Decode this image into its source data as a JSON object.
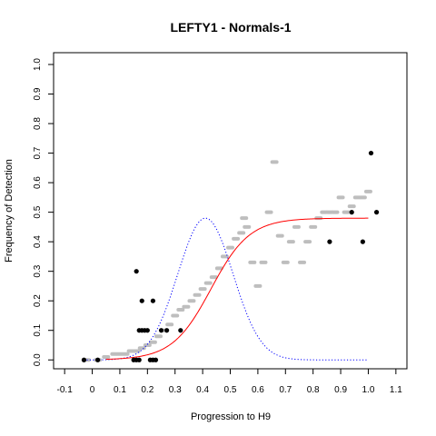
{
  "chart_data": {
    "type": "scatter",
    "title": "LEFTY1 - Normals-1",
    "xlabel": "Progression to H9",
    "ylabel": "Frequency of Detection",
    "xlim": [
      -0.14,
      1.14
    ],
    "ylim": [
      -0.03,
      1.04
    ],
    "x_ticks": [
      "-0.1",
      "0",
      "0.1",
      "0.2",
      "0.3",
      "0.4",
      "0.5",
      "0.6",
      "0.7",
      "0.8",
      "0.9",
      "1.0",
      "1.1"
    ],
    "x_tick_values": [
      -0.1,
      0,
      0.1,
      0.2,
      0.3,
      0.4,
      0.5,
      0.6,
      0.7,
      0.8,
      0.9,
      1.0,
      1.1
    ],
    "y_ticks": [
      "0.0",
      "0.1",
      "0.2",
      "0.3",
      "0.4",
      "0.5",
      "0.6",
      "0.7",
      "0.8",
      "0.9",
      "1.0"
    ],
    "y_tick_values": [
      0,
      0.1,
      0.2,
      0.3,
      0.4,
      0.5,
      0.6,
      0.7,
      0.8,
      0.9,
      1.0
    ],
    "grid": false,
    "legend": "none",
    "colors": {
      "observed_points": "#000000",
      "smoothed_points": "#bebebe",
      "fitted_curve": "#ff0000",
      "density_curve": "#0000ff"
    },
    "observed_points": [
      {
        "x": -0.03,
        "y": 0.0
      },
      {
        "x": 0.02,
        "y": 0.0
      },
      {
        "x": 0.15,
        "y": 0.0
      },
      {
        "x": 0.16,
        "y": 0.0
      },
      {
        "x": 0.17,
        "y": 0.0
      },
      {
        "x": 0.21,
        "y": 0.0
      },
      {
        "x": 0.22,
        "y": 0.0
      },
      {
        "x": 0.23,
        "y": 0.0
      },
      {
        "x": 0.16,
        "y": 0.3
      },
      {
        "x": 0.18,
        "y": 0.2
      },
      {
        "x": 0.22,
        "y": 0.2
      },
      {
        "x": 0.17,
        "y": 0.1
      },
      {
        "x": 0.18,
        "y": 0.1
      },
      {
        "x": 0.19,
        "y": 0.1
      },
      {
        "x": 0.2,
        "y": 0.1
      },
      {
        "x": 0.25,
        "y": 0.1
      },
      {
        "x": 0.27,
        "y": 0.1
      },
      {
        "x": 0.32,
        "y": 0.1
      },
      {
        "x": 0.86,
        "y": 0.4
      },
      {
        "x": 0.98,
        "y": 0.4
      },
      {
        "x": 0.94,
        "y": 0.5
      },
      {
        "x": 1.03,
        "y": 0.5
      },
      {
        "x": 1.01,
        "y": 0.7
      }
    ],
    "smoothed_series": [
      {
        "x": -0.02,
        "y": 0.0
      },
      {
        "x": 0.02,
        "y": 0.0
      },
      {
        "x": 0.05,
        "y": 0.01
      },
      {
        "x": 0.08,
        "y": 0.02
      },
      {
        "x": 0.1,
        "y": 0.02
      },
      {
        "x": 0.12,
        "y": 0.02
      },
      {
        "x": 0.14,
        "y": 0.03
      },
      {
        "x": 0.16,
        "y": 0.03
      },
      {
        "x": 0.18,
        "y": 0.04
      },
      {
        "x": 0.2,
        "y": 0.05
      },
      {
        "x": 0.22,
        "y": 0.06
      },
      {
        "x": 0.24,
        "y": 0.08
      },
      {
        "x": 0.26,
        "y": 0.1
      },
      {
        "x": 0.28,
        "y": 0.12
      },
      {
        "x": 0.3,
        "y": 0.15
      },
      {
        "x": 0.32,
        "y": 0.17
      },
      {
        "x": 0.34,
        "y": 0.18
      },
      {
        "x": 0.36,
        "y": 0.2
      },
      {
        "x": 0.38,
        "y": 0.22
      },
      {
        "x": 0.4,
        "y": 0.24
      },
      {
        "x": 0.42,
        "y": 0.26
      },
      {
        "x": 0.44,
        "y": 0.28
      },
      {
        "x": 0.46,
        "y": 0.31
      },
      {
        "x": 0.48,
        "y": 0.35
      },
      {
        "x": 0.5,
        "y": 0.38
      },
      {
        "x": 0.52,
        "y": 0.41
      },
      {
        "x": 0.54,
        "y": 0.43
      },
      {
        "x": 0.55,
        "y": 0.48
      },
      {
        "x": 0.56,
        "y": 0.45
      },
      {
        "x": 0.58,
        "y": 0.33
      },
      {
        "x": 0.6,
        "y": 0.25
      },
      {
        "x": 0.62,
        "y": 0.33
      },
      {
        "x": 0.64,
        "y": 0.5
      },
      {
        "x": 0.66,
        "y": 0.67
      },
      {
        "x": 0.68,
        "y": 0.42
      },
      {
        "x": 0.7,
        "y": 0.33
      },
      {
        "x": 0.72,
        "y": 0.4
      },
      {
        "x": 0.74,
        "y": 0.45
      },
      {
        "x": 0.76,
        "y": 0.33
      },
      {
        "x": 0.78,
        "y": 0.4
      },
      {
        "x": 0.8,
        "y": 0.45
      },
      {
        "x": 0.82,
        "y": 0.48
      },
      {
        "x": 0.84,
        "y": 0.5
      },
      {
        "x": 0.86,
        "y": 0.5
      },
      {
        "x": 0.88,
        "y": 0.5
      },
      {
        "x": 0.9,
        "y": 0.55
      },
      {
        "x": 0.92,
        "y": 0.5
      },
      {
        "x": 0.94,
        "y": 0.52
      },
      {
        "x": 0.96,
        "y": 0.55
      },
      {
        "x": 0.98,
        "y": 0.55
      },
      {
        "x": 1.0,
        "y": 0.57
      }
    ],
    "fitted_curve": {
      "form": "logistic",
      "upper_asymptote": 0.48,
      "midpoint": 0.43,
      "scale": 0.07
    },
    "density_curve": {
      "form": "normal",
      "mean": 0.41,
      "sd": 0.1,
      "peak": 0.48
    }
  }
}
